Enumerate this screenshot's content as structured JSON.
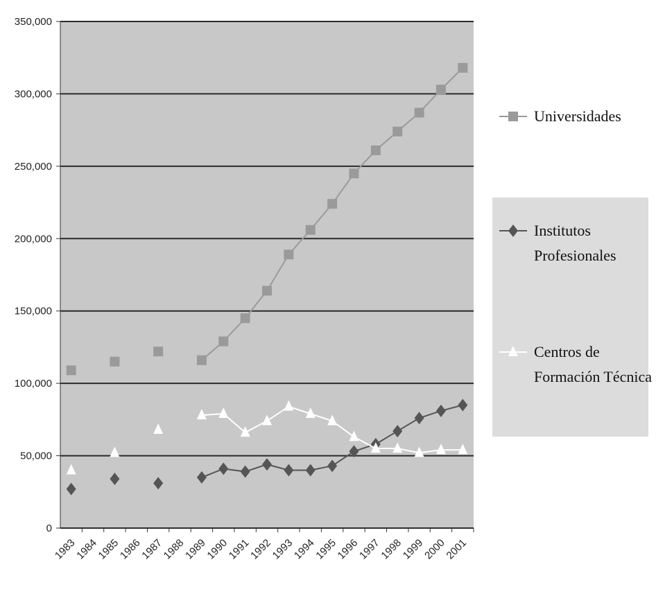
{
  "chart_data": {
    "type": "line",
    "categories": [
      "1983",
      "1984",
      "1985",
      "1986",
      "1987",
      "1988",
      "1989",
      "1990",
      "1991",
      "1992",
      "1993",
      "1994",
      "1995",
      "1996",
      "1997",
      "1998",
      "1999",
      "2000",
      "2001"
    ],
    "series": [
      {
        "name": "Universidades",
        "color": "#9a9a9a",
        "marker": "square",
        "values": [
          109000,
          null,
          115000,
          null,
          122000,
          null,
          116000,
          129000,
          145000,
          164000,
          189000,
          206000,
          224000,
          245000,
          261000,
          274000,
          287000,
          303000,
          318000
        ]
      },
      {
        "name": "Institutos Profesionales",
        "color": "#555555",
        "marker": "diamond",
        "values": [
          27000,
          null,
          34000,
          null,
          31000,
          null,
          35000,
          41000,
          39000,
          44000,
          40000,
          40000,
          43000,
          53000,
          58000,
          67000,
          76000,
          81000,
          85000
        ]
      },
      {
        "name": "Centros de Formación Técnica",
        "color": "#ffffff",
        "marker": "triangle",
        "values": [
          40000,
          null,
          52000,
          null,
          68000,
          null,
          78000,
          79000,
          66000,
          74000,
          84000,
          79000,
          74000,
          63000,
          55000,
          55000,
          52000,
          54000,
          54000
        ]
      }
    ],
    "ylim": [
      0,
      350000
    ],
    "yticks": [
      0,
      {
        "value": 50000,
        "label": "50,000"
      },
      {
        "value": 100000,
        "label": "100,000"
      },
      {
        "value": 150000,
        "label": "150,000"
      },
      {
        "value": 200000,
        "label": "200,000"
      },
      {
        "value": 250000,
        "label": "250,000"
      },
      {
        "value": 300000,
        "label": "300,000"
      },
      {
        "value": 350000,
        "label": "350,000"
      }
    ],
    "grid": true
  }
}
